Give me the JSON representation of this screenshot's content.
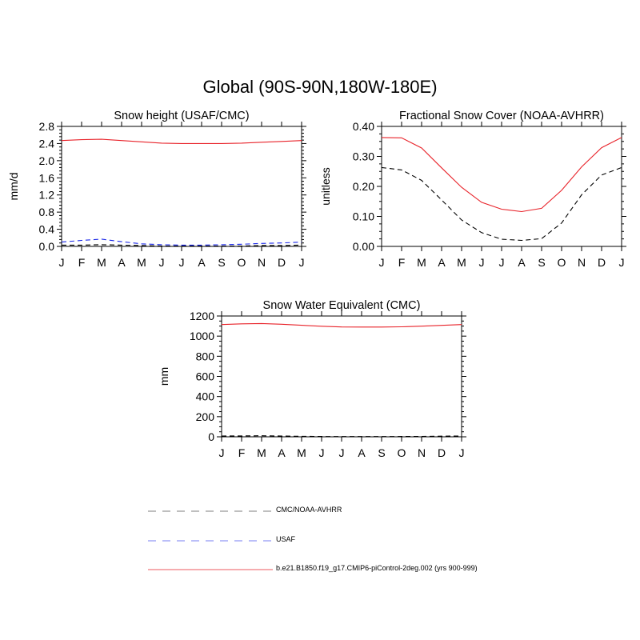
{
  "title": "Global (90S-90N,180W-180E)",
  "colors": {
    "model": "#e8232a",
    "cmc_obs": "#000000",
    "usaf": "#1a27e8"
  },
  "legend": [
    {
      "label": "CMC/NOAA-AVHRR",
      "color": "#555555",
      "style": "dashed"
    },
    {
      "label": "USAF",
      "color": "#4a55ee",
      "style": "dashed"
    },
    {
      "label": "b.e21.B1850.f19_g17.CMIP6-piControl-2deg.002 (yrs 900-999)",
      "color": "#e8232a",
      "style": "solid"
    }
  ],
  "chart_data": [
    {
      "type": "line",
      "title": "Snow height (USAF/CMC)",
      "ylabel": "mm/d",
      "xlabel": "",
      "categories": [
        "J",
        "F",
        "M",
        "A",
        "M",
        "J",
        "J",
        "A",
        "S",
        "O",
        "N",
        "D",
        "J"
      ],
      "ylim": [
        0,
        2.8
      ],
      "yticks": [
        "0.0",
        "0.4",
        "0.8",
        "1.2",
        "1.6",
        "2.0",
        "2.4",
        "2.8"
      ],
      "series": [
        {
          "key": "model",
          "values": [
            2.47,
            2.49,
            2.5,
            2.47,
            2.44,
            2.41,
            2.4,
            2.4,
            2.4,
            2.41,
            2.43,
            2.45,
            2.47
          ]
        },
        {
          "key": "usaf",
          "values": [
            0.1,
            0.14,
            0.17,
            0.11,
            0.06,
            0.04,
            0.03,
            0.03,
            0.04,
            0.05,
            0.07,
            0.08,
            0.1
          ]
        },
        {
          "key": "cmc_obs",
          "values": [
            0.03,
            0.03,
            0.04,
            0.03,
            0.02,
            0.01,
            0.01,
            0.01,
            0.01,
            0.01,
            0.02,
            0.02,
            0.03
          ]
        }
      ]
    },
    {
      "type": "line",
      "title": "Fractional Snow Cover (NOAA-AVHRR)",
      "ylabel": "unitless",
      "xlabel": "",
      "categories": [
        "J",
        "F",
        "M",
        "A",
        "M",
        "J",
        "J",
        "A",
        "S",
        "O",
        "N",
        "D",
        "J"
      ],
      "ylim": [
        0,
        0.4
      ],
      "yticks": [
        "0.00",
        "0.10",
        "0.20",
        "0.30",
        "0.40"
      ],
      "series": [
        {
          "key": "model",
          "values": [
            0.363,
            0.362,
            0.328,
            0.262,
            0.197,
            0.147,
            0.124,
            0.116,
            0.127,
            0.187,
            0.265,
            0.329,
            0.363
          ]
        },
        {
          "key": "cmc_obs",
          "values": [
            0.263,
            0.255,
            0.22,
            0.155,
            0.088,
            0.046,
            0.024,
            0.02,
            0.026,
            0.078,
            0.172,
            0.238,
            0.263
          ]
        }
      ]
    },
    {
      "type": "line",
      "title": "Snow Water Equivalent (CMC)",
      "ylabel": "mm",
      "xlabel": "",
      "categories": [
        "J",
        "F",
        "M",
        "A",
        "M",
        "J",
        "J",
        "A",
        "S",
        "O",
        "N",
        "D",
        "J"
      ],
      "ylim": [
        0,
        1200
      ],
      "yticks": [
        "0",
        "200",
        "400",
        "600",
        "800",
        "1000",
        "1200"
      ],
      "series": [
        {
          "key": "model",
          "values": [
            1115,
            1122,
            1125,
            1118,
            1108,
            1098,
            1091,
            1090,
            1090,
            1093,
            1099,
            1107,
            1115
          ]
        },
        {
          "key": "cmc_obs",
          "values": [
            8,
            9,
            10,
            8,
            5,
            3,
            2,
            2,
            2,
            3,
            4,
            6,
            8
          ]
        }
      ]
    }
  ]
}
